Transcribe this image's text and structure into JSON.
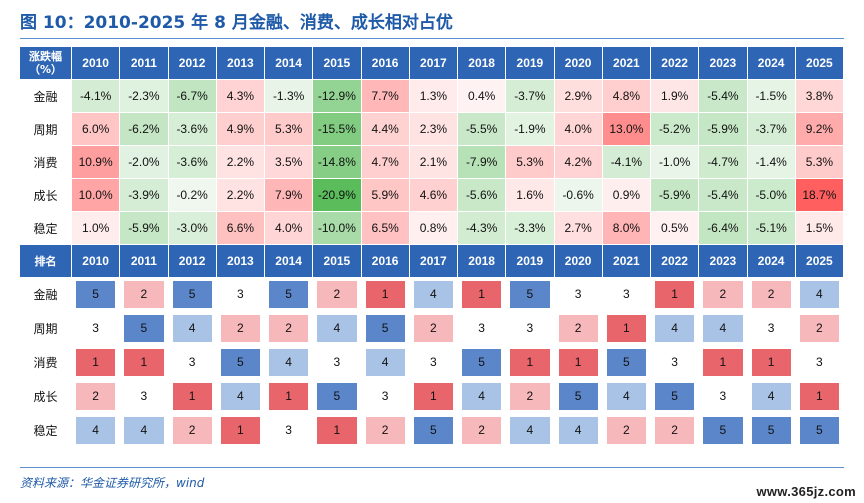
{
  "title": "图 10：2010-2025 年 8 月金融、消费、成长相对占优",
  "source": "资料来源：华金证券研究所，wind",
  "watermark": "www.365jz.com",
  "years": [
    "2010",
    "2011",
    "2012",
    "2013",
    "2014",
    "2015",
    "2016",
    "2017",
    "2018",
    "2019",
    "2020",
    "2021",
    "2022",
    "2023",
    "2024",
    "2025"
  ],
  "returns_header_label": "涨跌幅\n（%）",
  "ranks_header_label": "排名",
  "returns": [
    {
      "label": "金融",
      "values": [
        "-4.1%",
        "-2.3%",
        "-6.7%",
        "4.3%",
        "-1.3%",
        "-12.9%",
        "7.7%",
        "1.3%",
        "0.4%",
        "-3.7%",
        "2.9%",
        "4.8%",
        "1.9%",
        "-5.4%",
        "-1.5%",
        "3.8%"
      ]
    },
    {
      "label": "周期",
      "values": [
        "6.0%",
        "-6.2%",
        "-3.6%",
        "4.9%",
        "5.3%",
        "-15.5%",
        "4.4%",
        "2.3%",
        "-5.5%",
        "-1.9%",
        "4.0%",
        "13.0%",
        "-5.2%",
        "-5.9%",
        "-3.7%",
        "9.2%"
      ]
    },
    {
      "label": "消费",
      "values": [
        "10.9%",
        "-2.0%",
        "-3.6%",
        "2.2%",
        "3.5%",
        "-14.8%",
        "4.7%",
        "2.1%",
        "-7.9%",
        "5.3%",
        "4.2%",
        "-4.1%",
        "-1.0%",
        "-4.7%",
        "-1.4%",
        "5.3%"
      ]
    },
    {
      "label": "成长",
      "values": [
        "10.0%",
        "-3.9%",
        "-0.2%",
        "2.2%",
        "7.9%",
        "-20.9%",
        "5.9%",
        "4.6%",
        "-5.6%",
        "1.6%",
        "-0.6%",
        "0.9%",
        "-5.9%",
        "-5.4%",
        "-5.0%",
        "18.7%"
      ]
    },
    {
      "label": "稳定",
      "values": [
        "1.0%",
        "-5.9%",
        "-3.0%",
        "6.6%",
        "4.0%",
        "-10.0%",
        "6.5%",
        "0.8%",
        "-4.3%",
        "-3.3%",
        "2.7%",
        "8.0%",
        "0.5%",
        "-6.4%",
        "-5.1%",
        "1.5%"
      ]
    }
  ],
  "ranks": [
    {
      "label": "金融",
      "values": [
        "5",
        "2",
        "5",
        "3",
        "5",
        "2",
        "1",
        "4",
        "1",
        "5",
        "3",
        "3",
        "1",
        "2",
        "2",
        "4"
      ]
    },
    {
      "label": "周期",
      "values": [
        "3",
        "5",
        "4",
        "2",
        "2",
        "4",
        "5",
        "2",
        "3",
        "3",
        "2",
        "1",
        "4",
        "4",
        "3",
        "2"
      ]
    },
    {
      "label": "消费",
      "values": [
        "1",
        "1",
        "3",
        "5",
        "4",
        "3",
        "4",
        "3",
        "5",
        "1",
        "1",
        "5",
        "3",
        "1",
        "1",
        "3"
      ]
    },
    {
      "label": "成长",
      "values": [
        "2",
        "3",
        "1",
        "4",
        "1",
        "5",
        "3",
        "1",
        "4",
        "2",
        "5",
        "4",
        "5",
        "3",
        "4",
        "1"
      ]
    },
    {
      "label": "稳定",
      "values": [
        "4",
        "4",
        "2",
        "1",
        "3",
        "1",
        "2",
        "5",
        "2",
        "4",
        "4",
        "2",
        "2",
        "5",
        "5",
        "5"
      ]
    }
  ],
  "rank_colors": {
    "1": "#e8656c",
    "2": "#f7b8bb",
    "3": "#ffffff",
    "4": "#a9c3e6",
    "5": "#5b86c9"
  },
  "header_color": "#2e66b5",
  "title_color": "#1f5aa8"
}
